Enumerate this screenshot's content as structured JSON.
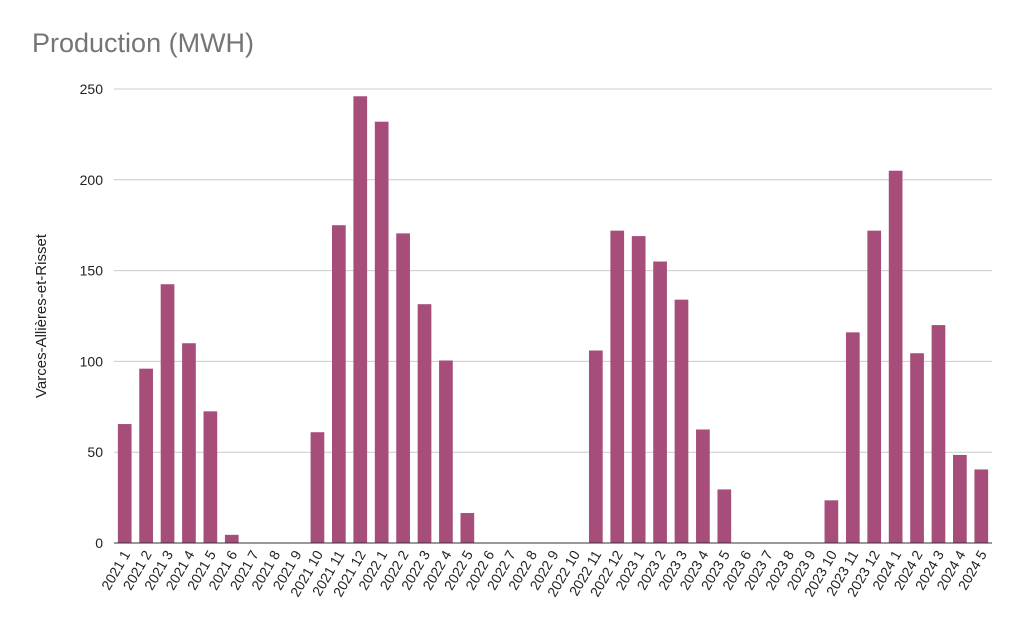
{
  "chart_data": {
    "type": "bar",
    "title": "Production (MWH)",
    "xlabel": "",
    "ylabel": "Varces-Allières-et-Risset",
    "ylim": [
      0,
      250
    ],
    "yticks": [
      0,
      50,
      100,
      150,
      200,
      250
    ],
    "grid": true,
    "legend": "none",
    "bar_color": "#a64d79",
    "categories": [
      "2021 1",
      "2021 2",
      "2021 3",
      "2021 4",
      "2021 5",
      "2021 6",
      "2021 7",
      "2021 8",
      "2021 9",
      "2021 10",
      "2021 11",
      "2021 12",
      "2022 1",
      "2022 2",
      "2022 3",
      "2022 4",
      "2022 5",
      "2022 6",
      "2022 7",
      "2022 8",
      "2022 9",
      "2022 10",
      "2022 11",
      "2022 12",
      "2023 1",
      "2023 2",
      "2023 3",
      "2023 4",
      "2023 5",
      "2023 6",
      "2023 7",
      "2023 8",
      "2023 9",
      "2023 10",
      "2023 11",
      "2023 12",
      "2024 1",
      "2024 2",
      "2024 3",
      "2024 4",
      "2024 5"
    ],
    "values": [
      65.5,
      96,
      142.5,
      110,
      72.5,
      4.5,
      0,
      0,
      0,
      61,
      175,
      246,
      232,
      170.5,
      131.5,
      100.5,
      16.5,
      0,
      0,
      0,
      0,
      0,
      106,
      172,
      169,
      155,
      134,
      62.5,
      29.5,
      0,
      0,
      0,
      0,
      23.5,
      116,
      172,
      205,
      104.5,
      120,
      48.5,
      40.5
    ]
  }
}
